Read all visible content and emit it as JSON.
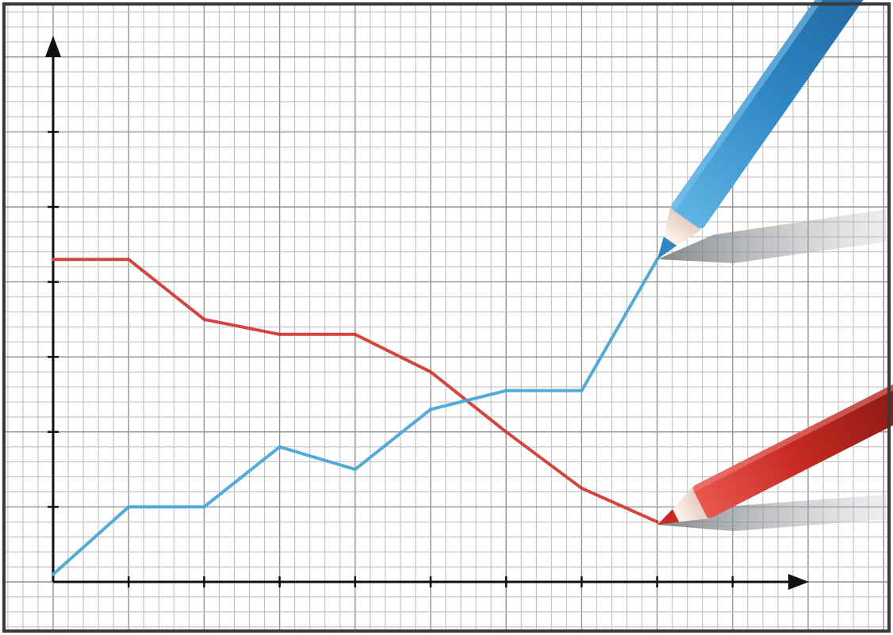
{
  "chart_data": {
    "type": "line",
    "title": "",
    "xlabel": "",
    "ylabel": "",
    "x": [
      0,
      1,
      2,
      3,
      4,
      5,
      6,
      7,
      8
    ],
    "xlim": [
      0,
      10
    ],
    "ylim": [
      0,
      7
    ],
    "grid": true,
    "legend": "none",
    "series": [
      {
        "color": "#d23b36",
        "values": [
          4.3,
          4.3,
          3.5,
          3.3,
          3.3,
          2.8,
          2.0,
          1.25,
          0.8
        ]
      },
      {
        "color": "#4aa6d6",
        "values": [
          0.1,
          1.0,
          1.0,
          1.8,
          1.5,
          2.3,
          2.55,
          2.55,
          4.3
        ]
      }
    ]
  },
  "colors": {
    "grid_minor": "#b8bcc0",
    "grid_major": "#8e9398",
    "axis": "#111111",
    "border": "#3a3a3a",
    "blue_pencil": "#2f86c4",
    "red_pencil": "#c62a22"
  },
  "decorations": {
    "blue_pencil_icon": "blue-pencil-icon",
    "red_pencil_icon": "red-pencil-icon"
  }
}
